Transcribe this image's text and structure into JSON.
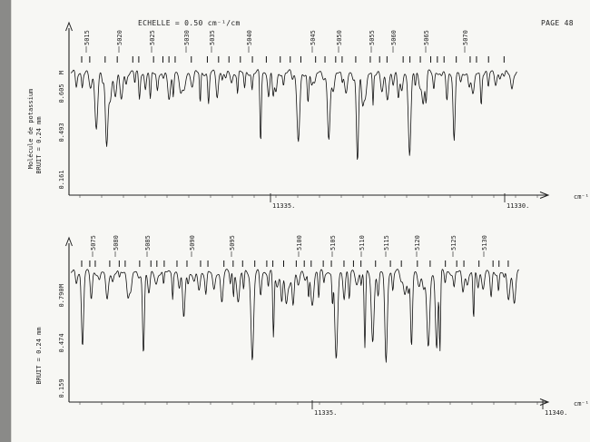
{
  "header": {
    "scale": "ECHELLE = 0.50 cm⁻¹/cm",
    "page": "PAGE 48"
  },
  "chart_data": [
    {
      "type": "line",
      "panel": "top",
      "x_axis_label": "cm⁻¹",
      "x_tick_labels": [
        "11335.",
        "11330."
      ],
      "y_ticks": [
        "0.605",
        "0.493",
        "0.161"
      ],
      "y_axis_label_rotated": "Molécule de potassium",
      "noise_label": "BRUIT = 0.24 mm",
      "marker": "M",
      "line_numbers": [
        "5015",
        "5020",
        "5025",
        "5030",
        "5035",
        "5040",
        "5045",
        "5050",
        "5055",
        "5060",
        "5065",
        "5070"
      ],
      "grid": false
    },
    {
      "type": "line",
      "panel": "bottom",
      "x_axis_label": "cm⁻¹",
      "x_tick_labels": [
        "11335.",
        "11340."
      ],
      "y_ticks": [
        "0.790",
        "0.474",
        "0.159"
      ],
      "noise_label": "BRUIT = 0.24 mm",
      "marker": "M",
      "line_numbers": [
        "5075",
        "5080",
        "5085",
        "5090",
        "5095",
        "5100",
        "5105",
        "5110",
        "5115",
        "5120",
        "5125",
        "5130"
      ],
      "grid": false
    }
  ]
}
